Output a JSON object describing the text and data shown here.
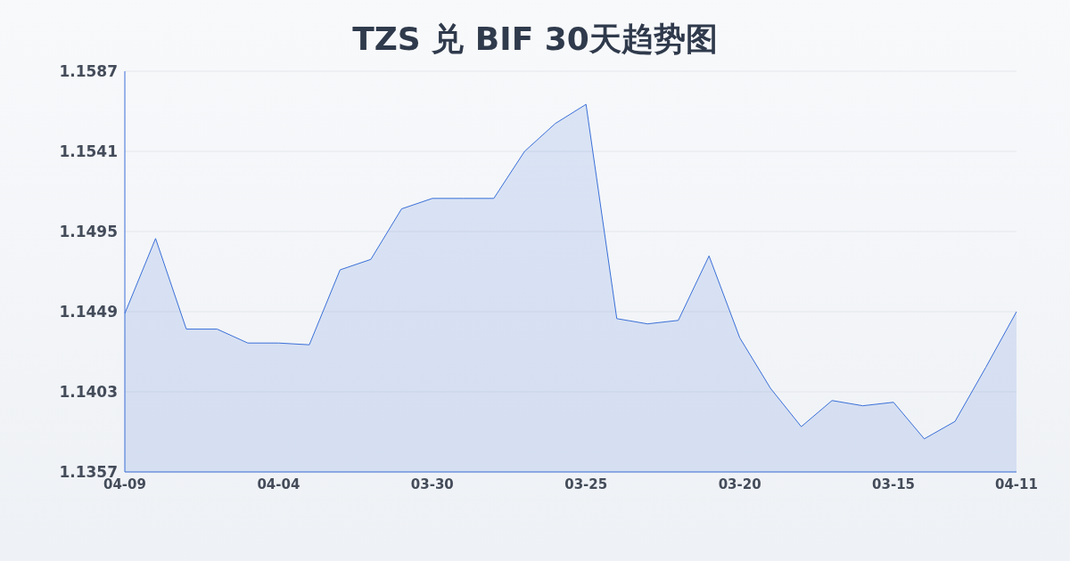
{
  "chart_data": {
    "type": "area",
    "title": "TZS 兑 BIF 30天趋势图",
    "categories": [
      "04-09",
      null,
      null,
      null,
      null,
      "04-04",
      null,
      null,
      null,
      null,
      "03-30",
      null,
      null,
      null,
      null,
      "03-25",
      null,
      null,
      null,
      null,
      "03-20",
      null,
      null,
      null,
      null,
      "03-15",
      null,
      null,
      null,
      "04-11"
    ],
    "series": [
      {
        "color": "#3a6fd8",
        "values": [
          1.1448,
          1.1491,
          1.1439,
          1.1439,
          1.1431,
          1.1431,
          1.143,
          1.1473,
          1.1479,
          1.1508,
          1.1514,
          1.1514,
          1.1514,
          1.1541,
          1.1557,
          1.1568,
          1.1445,
          1.1442,
          1.1444,
          1.1481,
          1.1434,
          1.1405,
          1.1383,
          1.1398,
          1.1395,
          1.1397,
          1.1376,
          1.1386,
          1.1417,
          1.1449
        ]
      }
    ],
    "ylim": [
      1.1357,
      1.1587
    ],
    "yticks": [
      1.1357,
      1.1403,
      1.1449,
      1.1495,
      1.1541,
      1.1587
    ],
    "grid": "y",
    "legend": false
  }
}
